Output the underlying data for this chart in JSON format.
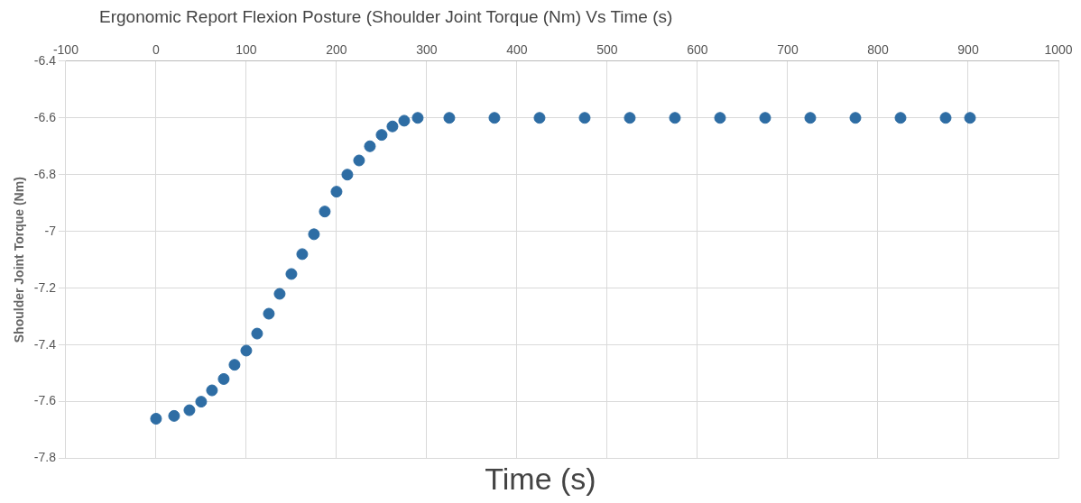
{
  "chart_data": {
    "type": "scatter",
    "title": "Ergonomic Report Flexion Posture (Shoulder Joint Torque (Nm) Vs Time (s)",
    "xlabel": "Time (s)",
    "ylabel": "Shoulder Joint Torque (Nm)",
    "x": [
      0,
      20,
      37,
      50,
      62,
      75,
      87,
      100,
      112,
      125,
      137,
      150,
      162,
      175,
      187,
      200,
      212,
      225,
      237,
      250,
      262,
      275,
      290,
      325,
      375,
      425,
      475,
      525,
      575,
      625,
      675,
      725,
      775,
      825,
      875,
      902
    ],
    "values": [
      -7.66,
      -7.65,
      -7.63,
      -7.6,
      -7.56,
      -7.52,
      -7.47,
      -7.42,
      -7.36,
      -7.29,
      -7.22,
      -7.15,
      -7.08,
      -7.01,
      -6.93,
      -6.86,
      -6.8,
      -6.75,
      -6.7,
      -6.66,
      -6.63,
      -6.61,
      -6.6,
      -6.6,
      -6.6,
      -6.6,
      -6.6,
      -6.6,
      -6.6,
      -6.6,
      -6.6,
      -6.6,
      -6.6,
      -6.6,
      -6.6,
      -6.6
    ],
    "color": "#2e6da4",
    "marker": "circle",
    "grid": true,
    "legend": false,
    "xlim": [
      -100,
      1000
    ],
    "xticks": [
      -100,
      0,
      100,
      200,
      300,
      400,
      500,
      600,
      700,
      800,
      900,
      1000
    ],
    "ylim": [
      -7.8,
      -6.4
    ],
    "yticks": [
      -7.8,
      -7.6,
      -7.4,
      -7.2,
      -7,
      -6.8,
      -6.6,
      -6.4
    ]
  }
}
